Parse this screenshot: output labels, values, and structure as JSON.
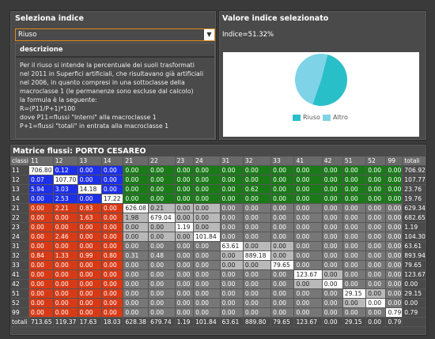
{
  "left": {
    "title": "Seleziona indice",
    "select_value": "Riuso",
    "desc_title": "descrizione",
    "desc_lines": [
      "Per il riuso si intende la percentuale dei suoli trasformati",
      "nel 2011 in Superfici artificiali, che risultavano già artificiali",
      "nel 2006, in quanto compresi in una sottoclasse della",
      "macroclasse 1 (le permanenze sono escluse dal calcolo)",
      "la formula è la seguente:",
      "R=(P11/P+1)*100",
      "dove P11=flussi \"Interni\" alla macroclasse 1",
      "P+1=flussi \"totali\" in entrata alla macroclasse 1"
    ]
  },
  "right": {
    "title": "Valore indice selezionato",
    "index_text": "Indice=51.32%",
    "pie": {
      "slices": [
        {
          "label": "Riuso",
          "value": 51.32,
          "color": "#29bfc9"
        },
        {
          "label": "Altro",
          "value": 48.68,
          "color": "#7fd3e6"
        }
      ]
    }
  },
  "matrix": {
    "title": "Matrice flussi: PORTO CESAREO",
    "headers": [
      "classi",
      "11",
      "12",
      "13",
      "14",
      "21",
      "22",
      "23",
      "24",
      "31",
      "32",
      "33",
      "41",
      "42",
      "51",
      "52",
      "99",
      "totali"
    ],
    "rows": [
      {
        "label": "11",
        "cells": [
          "706.80",
          "0.12",
          "0.00",
          "0.00",
          "0.00",
          "0.00",
          "0.00",
          "0.00",
          "0.00",
          "0.00",
          "0.00",
          "0.00",
          "0.00",
          "0.00",
          "0.00",
          "0.00"
        ],
        "total": "706.92"
      },
      {
        "label": "12",
        "cells": [
          "0.07",
          "107.70",
          "0.00",
          "0.00",
          "0.00",
          "0.00",
          "0.00",
          "0.00",
          "0.00",
          "0.00",
          "0.00",
          "0.00",
          "0.00",
          "0.00",
          "0.00",
          "0.00"
        ],
        "total": "107.77"
      },
      {
        "label": "13",
        "cells": [
          "5.94",
          "3.03",
          "14.18",
          "0.00",
          "0.00",
          "0.00",
          "0.00",
          "0.00",
          "0.00",
          "0.62",
          "0.00",
          "0.00",
          "0.00",
          "0.00",
          "0.00",
          "0.00"
        ],
        "total": "23.76"
      },
      {
        "label": "14",
        "cells": [
          "0.00",
          "2.53",
          "0.00",
          "17.22",
          "0.00",
          "0.00",
          "0.00",
          "0.00",
          "0.00",
          "0.00",
          "0.00",
          "0.00",
          "0.00",
          "0.00",
          "0.00",
          "0.00"
        ],
        "total": "19.76"
      },
      {
        "label": "21",
        "cells": [
          "0.00",
          "2.21",
          "0.83",
          "0.00",
          "626.08",
          "0.21",
          "0.00",
          "0.00",
          "0.00",
          "0.00",
          "0.00",
          "0.00",
          "0.00",
          "0.00",
          "0.00",
          "0.00"
        ],
        "total": "629.34"
      },
      {
        "label": "22",
        "cells": [
          "0.00",
          "0.00",
          "1.63",
          "0.00",
          "1.98",
          "679.04",
          "0.00",
          "0.00",
          "0.00",
          "0.00",
          "0.00",
          "0.00",
          "0.00",
          "0.00",
          "0.00",
          "0.00"
        ],
        "total": "682.65"
      },
      {
        "label": "23",
        "cells": [
          "0.00",
          "0.00",
          "0.00",
          "0.00",
          "0.00",
          "0.00",
          "1.19",
          "0.00",
          "0.00",
          "0.00",
          "0.00",
          "0.00",
          "0.00",
          "0.00",
          "0.00",
          "0.00"
        ],
        "total": "1.19"
      },
      {
        "label": "24",
        "cells": [
          "0.00",
          "2.46",
          "0.00",
          "0.00",
          "0.00",
          "0.00",
          "0.00",
          "101.84",
          "0.00",
          "0.00",
          "0.00",
          "0.00",
          "0.00",
          "0.00",
          "0.00",
          "0.00"
        ],
        "total": "104.30"
      },
      {
        "label": "31",
        "cells": [
          "0.00",
          "0.00",
          "0.00",
          "0.00",
          "0.00",
          "0.00",
          "0.00",
          "0.00",
          "63.61",
          "0.00",
          "0.00",
          "0.00",
          "0.00",
          "0.00",
          "0.00",
          "0.00"
        ],
        "total": "63.61"
      },
      {
        "label": "32",
        "cells": [
          "0.84",
          "1.33",
          "0.99",
          "0.80",
          "0.31",
          "0.48",
          "0.00",
          "0.00",
          "0.00",
          "889.18",
          "0.00",
          "0.00",
          "0.00",
          "0.00",
          "0.00",
          "0.00"
        ],
        "total": "893.94"
      },
      {
        "label": "33",
        "cells": [
          "0.00",
          "0.00",
          "0.00",
          "0.00",
          "0.00",
          "0.00",
          "0.00",
          "0.00",
          "0.00",
          "0.00",
          "79.65",
          "0.00",
          "0.00",
          "0.00",
          "0.00",
          "0.00"
        ],
        "total": "79.65"
      },
      {
        "label": "41",
        "cells": [
          "0.00",
          "0.00",
          "0.00",
          "0.00",
          "0.00",
          "0.00",
          "0.00",
          "0.00",
          "0.00",
          "0.00",
          "0.00",
          "123.67",
          "0.00",
          "0.00",
          "0.00",
          "0.00"
        ],
        "total": "123.67"
      },
      {
        "label": "42",
        "cells": [
          "0.00",
          "0.00",
          "0.00",
          "0.00",
          "0.00",
          "0.00",
          "0.00",
          "0.00",
          "0.00",
          "0.00",
          "0.00",
          "0.00",
          "0.00",
          "0.00",
          "0.00",
          "0.00"
        ],
        "total": "0.00"
      },
      {
        "label": "51",
        "cells": [
          "0.00",
          "0.00",
          "0.00",
          "0.00",
          "0.00",
          "0.00",
          "0.00",
          "0.00",
          "0.00",
          "0.00",
          "0.00",
          "0.00",
          "0.00",
          "29.15",
          "0.00",
          "0.00"
        ],
        "total": "29.15"
      },
      {
        "label": "52",
        "cells": [
          "0.00",
          "0.00",
          "0.00",
          "0.00",
          "0.00",
          "0.00",
          "0.00",
          "0.00",
          "0.00",
          "0.00",
          "0.00",
          "0.00",
          "0.00",
          "0.00",
          "0.00",
          "0.00"
        ],
        "total": "0.00"
      },
      {
        "label": "99",
        "cells": [
          "0.00",
          "0.00",
          "0.00",
          "0.00",
          "0.00",
          "0.00",
          "0.00",
          "0.00",
          "0.00",
          "0.00",
          "0.00",
          "0.00",
          "0.00",
          "0.00",
          "0.00",
          "0.79"
        ],
        "total": "0.79"
      }
    ],
    "totals_label": "totali",
    "totals": [
      "713.65",
      "119.37",
      "17.63",
      "18.03",
      "628.38",
      "679.74",
      "1.19",
      "101.84",
      "63.61",
      "889.80",
      "79.65",
      "123.67",
      "0.00",
      "29.15",
      "0.00",
      "0.79"
    ],
    "colors": {
      "blue": "#1e2fe8",
      "green": "#1a7a18",
      "red": "#d83a16",
      "grey": "#777777",
      "white": "#ffffff",
      "lightgrey": "#b9b9b9"
    }
  }
}
